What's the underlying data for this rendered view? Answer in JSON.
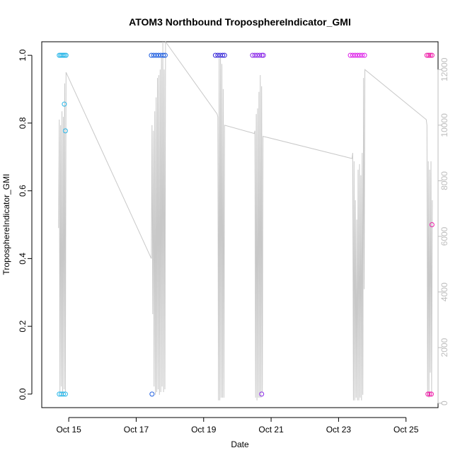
{
  "chart_data": {
    "type": "scatter",
    "title": "ATOM3 Northbound TroposphereIndicator_GMI",
    "xlabel": "Date",
    "ylabel": "TroposphereIndicator_GMI",
    "x_ticks": [
      "Oct 15",
      "Oct 17",
      "Oct 19",
      "Oct 21",
      "Oct 23",
      "Oct 25"
    ],
    "x_tick_days": [
      15,
      17,
      19,
      21,
      23,
      25
    ],
    "xlim": [
      14.2,
      25.95
    ],
    "ylim": [
      -0.04,
      1.04
    ],
    "y_ticks": [
      0.0,
      0.2,
      0.4,
      0.6,
      0.8,
      1.0
    ],
    "y2lim": [
      -160,
      13000
    ],
    "y2_ticks": [
      0,
      2000,
      4000,
      6000,
      8000,
      10000,
      12000
    ],
    "y2_color": "#bdbdbd",
    "grid": false,
    "series": [
      {
        "color": "#29b6e8",
        "points": [
          {
            "x": 14.72,
            "y": 1.0
          },
          {
            "x": 14.76,
            "y": 1.0
          },
          {
            "x": 14.8,
            "y": 1.0
          },
          {
            "x": 14.84,
            "y": 1.0
          },
          {
            "x": 14.88,
            "y": 1.0
          },
          {
            "x": 14.92,
            "y": 1.0
          },
          {
            "x": 14.72,
            "y": 0.0
          },
          {
            "x": 14.78,
            "y": 0.0
          },
          {
            "x": 14.84,
            "y": 0.0
          },
          {
            "x": 14.9,
            "y": 0.0
          },
          {
            "x": 14.87,
            "y": 0.856
          },
          {
            "x": 14.9,
            "y": 0.777
          }
        ]
      },
      {
        "color": "#1f5fe0",
        "points": [
          {
            "x": 17.45,
            "y": 1.0
          },
          {
            "x": 17.52,
            "y": 1.0
          },
          {
            "x": 17.59,
            "y": 1.0
          },
          {
            "x": 17.66,
            "y": 1.0
          },
          {
            "x": 17.73,
            "y": 1.0
          },
          {
            "x": 17.8,
            "y": 1.0
          },
          {
            "x": 17.86,
            "y": 1.0
          },
          {
            "x": 17.47,
            "y": 0.0
          }
        ]
      },
      {
        "color": "#3a2bd8",
        "points": [
          {
            "x": 19.35,
            "y": 1.0
          },
          {
            "x": 19.42,
            "y": 1.0
          },
          {
            "x": 19.49,
            "y": 1.0
          },
          {
            "x": 19.56,
            "y": 1.0
          },
          {
            "x": 19.62,
            "y": 1.0
          }
        ]
      },
      {
        "color": "#8c2be8",
        "points": [
          {
            "x": 20.45,
            "y": 1.0
          },
          {
            "x": 20.52,
            "y": 1.0
          },
          {
            "x": 20.59,
            "y": 1.0
          },
          {
            "x": 20.66,
            "y": 1.0
          },
          {
            "x": 20.73,
            "y": 1.0
          },
          {
            "x": 20.77,
            "y": 1.0
          },
          {
            "x": 20.72,
            "y": 0.0
          }
        ]
      },
      {
        "color": "#dd22e8",
        "points": [
          {
            "x": 23.35,
            "y": 1.0
          },
          {
            "x": 23.42,
            "y": 1.0
          },
          {
            "x": 23.49,
            "y": 1.0
          },
          {
            "x": 23.56,
            "y": 1.0
          },
          {
            "x": 23.63,
            "y": 1.0
          },
          {
            "x": 23.7,
            "y": 1.0
          },
          {
            "x": 23.77,
            "y": 1.0
          }
        ]
      },
      {
        "color": "#ee1ea8",
        "points": [
          {
            "x": 25.62,
            "y": 1.0
          },
          {
            "x": 25.67,
            "y": 1.0
          },
          {
            "x": 25.72,
            "y": 1.0
          },
          {
            "x": 25.77,
            "y": 1.0
          },
          {
            "x": 25.65,
            "y": 0.0
          },
          {
            "x": 25.7,
            "y": 0.0
          },
          {
            "x": 25.75,
            "y": 0.0
          },
          {
            "x": 25.77,
            "y": 0.5
          }
        ]
      }
    ],
    "altitude": {
      "color": "#c8c8c8",
      "axis": "right",
      "x": [
        14.7,
        14.72,
        14.74,
        14.76,
        14.78,
        14.8,
        14.82,
        14.84,
        14.86,
        14.88,
        14.9,
        14.92,
        17.45,
        17.47,
        17.49,
        17.51,
        17.53,
        17.55,
        17.57,
        17.59,
        17.61,
        17.63,
        17.65,
        17.67,
        17.69,
        17.71,
        17.73,
        17.75,
        17.77,
        17.79,
        17.81,
        17.83,
        17.85,
        17.87,
        19.4,
        19.42,
        19.44,
        19.46,
        19.48,
        19.5,
        19.52,
        19.54,
        19.56,
        19.58,
        19.6,
        19.62,
        20.5,
        20.52,
        20.54,
        20.56,
        20.58,
        20.6,
        20.62,
        20.64,
        20.66,
        20.68,
        20.7,
        20.72,
        20.74,
        20.76,
        23.4,
        23.42,
        23.44,
        23.46,
        23.48,
        23.5,
        23.52,
        23.54,
        23.56,
        23.58,
        23.6,
        23.62,
        23.64,
        23.66,
        23.68,
        23.7,
        23.72,
        23.74,
        23.76,
        23.78,
        25.6,
        25.62,
        25.64,
        25.66,
        25.68,
        25.7,
        25.72,
        25.74,
        25.76,
        25.78
      ],
      "y": [
        6300,
        10200,
        400,
        10000,
        600,
        10500,
        300,
        10300,
        500,
        11500,
        400,
        11900,
        5200,
        10000,
        3200,
        9800,
        600,
        10500,
        300,
        11000,
        400,
        11700,
        500,
        11800,
        300,
        12000,
        400,
        12500,
        600,
        13000,
        400,
        12000,
        500,
        13000,
        10400,
        10300,
        100,
        12400,
        100,
        12500,
        200,
        12200,
        200,
        11300,
        200,
        10000,
        9700,
        9800,
        200,
        10400,
        100,
        10600,
        200,
        11200,
        200,
        11800,
        200,
        11400,
        400,
        9600,
        8800,
        9000,
        100,
        8700,
        100,
        7300,
        200,
        6600,
        100,
        8400,
        100,
        8600,
        200,
        8200,
        100,
        9000,
        300,
        11700,
        4100,
        12000,
        10200,
        10000,
        300,
        8700,
        200,
        8400,
        1100,
        8700,
        400,
        7300
      ]
    }
  }
}
